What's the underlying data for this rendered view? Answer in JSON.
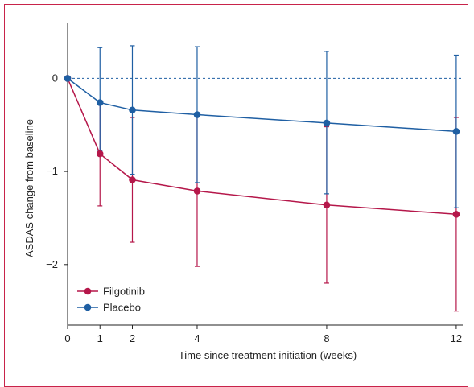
{
  "chart_data": {
    "type": "line",
    "xlabel": "Time since treatment initiation (weeks)",
    "ylabel": "ASDAS change from baseline",
    "x": [
      0,
      1,
      2,
      4,
      8,
      12
    ],
    "xticks": [
      "0",
      "1",
      "2",
      "4",
      "8",
      "12"
    ],
    "yticks": [
      "0",
      "−1",
      "−2"
    ],
    "ytick_values": [
      0,
      -1,
      -2
    ],
    "xlim": [
      0,
      12.35
    ],
    "ylim": [
      -2.65,
      0.6
    ],
    "reference_line": 0,
    "legend_position": "bottom-left",
    "series": [
      {
        "name": "Filgotinib",
        "color": "#b5174a",
        "values": [
          0,
          -0.81,
          -1.09,
          -1.21,
          -1.36,
          -1.46
        ],
        "error_low": [
          0,
          -1.37,
          -1.76,
          -2.02,
          -2.2,
          -2.5
        ],
        "error_high": [
          0,
          -0.25,
          -0.42,
          -0.4,
          -0.52,
          -0.42
        ]
      },
      {
        "name": "Placebo",
        "color": "#1f5fa3",
        "values": [
          0,
          -0.26,
          -0.34,
          -0.39,
          -0.48,
          -0.57
        ],
        "error_low": [
          0,
          -0.78,
          -1.03,
          -1.12,
          -1.24,
          -1.39
        ],
        "error_high": [
          0,
          0.33,
          0.35,
          0.34,
          0.29,
          0.25
        ]
      }
    ]
  }
}
